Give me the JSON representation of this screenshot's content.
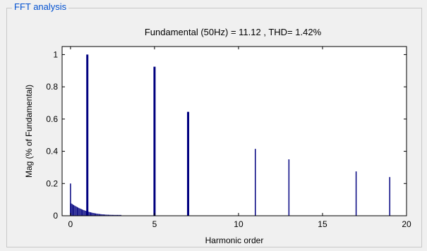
{
  "panel": {
    "title": "FFT analysis"
  },
  "colors": {
    "bar": "#00007f",
    "axis": "#000000",
    "panel_title": "#0050d0",
    "background": "#f0f0f0",
    "plot_bg": "#ffffff"
  },
  "chart_data": {
    "type": "bar",
    "title": "Fundamental (50Hz) = 11.12 , THD= 1.42%",
    "xlabel": "Harmonic order",
    "ylabel": "Mag (% of Fundamental)",
    "xlim": [
      -0.5,
      20
    ],
    "ylim": [
      0,
      1.05
    ],
    "xticks": [
      0,
      5,
      10,
      15,
      20
    ],
    "yticks": [
      0,
      0.2,
      0.4,
      0.6,
      0.8,
      1
    ],
    "grid": false,
    "harmonics": [
      {
        "x": 0,
        "y": 0.2
      },
      {
        "x": 1,
        "y": 1.0
      },
      {
        "x": 5,
        "y": 0.925
      },
      {
        "x": 7,
        "y": 0.645
      },
      {
        "x": 11,
        "y": 0.415
      },
      {
        "x": 13,
        "y": 0.35
      },
      {
        "x": 17,
        "y": 0.275
      },
      {
        "x": 19,
        "y": 0.24
      }
    ],
    "interharmonic_floor": {
      "x_range": [
        0,
        3
      ],
      "start_y": 0.08,
      "end_y": 0.005
    }
  }
}
